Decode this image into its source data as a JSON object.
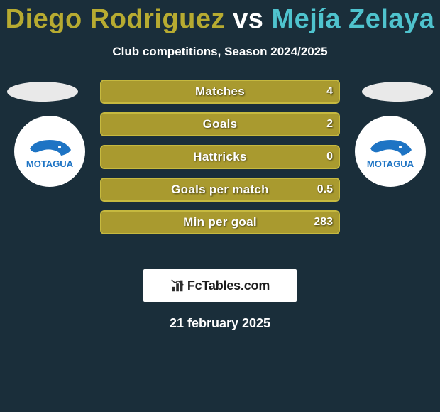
{
  "title": {
    "player1": "Diego Rodriguez",
    "vs": "vs",
    "player2": "Mejía Zelaya",
    "player1_color": "#b7ab31",
    "vs_color": "#ffffff",
    "player2_color": "#4fc3ce",
    "fontsize": 38
  },
  "subtitle": "Club competitions, Season 2024/2025",
  "background_color": "#1a2e3a",
  "bars": {
    "fill_color_left": "#a99a2f",
    "fill_color_right": "#4fc3ce",
    "border_color": "#c6b93f",
    "label_color": "#ffffff",
    "value_color": "#ffffff",
    "height": 36,
    "gap": 10,
    "rows": [
      {
        "label": "Matches",
        "left": null,
        "right": "4",
        "left_pct": 0,
        "right_pct": 100
      },
      {
        "label": "Goals",
        "left": null,
        "right": "2",
        "left_pct": 0,
        "right_pct": 100
      },
      {
        "label": "Hattricks",
        "left": null,
        "right": "0",
        "left_pct": 0,
        "right_pct": 100
      },
      {
        "label": "Goals per match",
        "left": null,
        "right": "0.5",
        "left_pct": 0,
        "right_pct": 100
      },
      {
        "label": "Min per goal",
        "left": null,
        "right": "283",
        "left_pct": 0,
        "right_pct": 100
      }
    ]
  },
  "club_logo": {
    "name": "MOTAGUA",
    "primary_color": "#1e74c4",
    "text_color": "#1e74c4"
  },
  "attribution": {
    "label": "FcTables.com",
    "icon": "bar-chart-icon"
  },
  "date": "21 february 2025"
}
